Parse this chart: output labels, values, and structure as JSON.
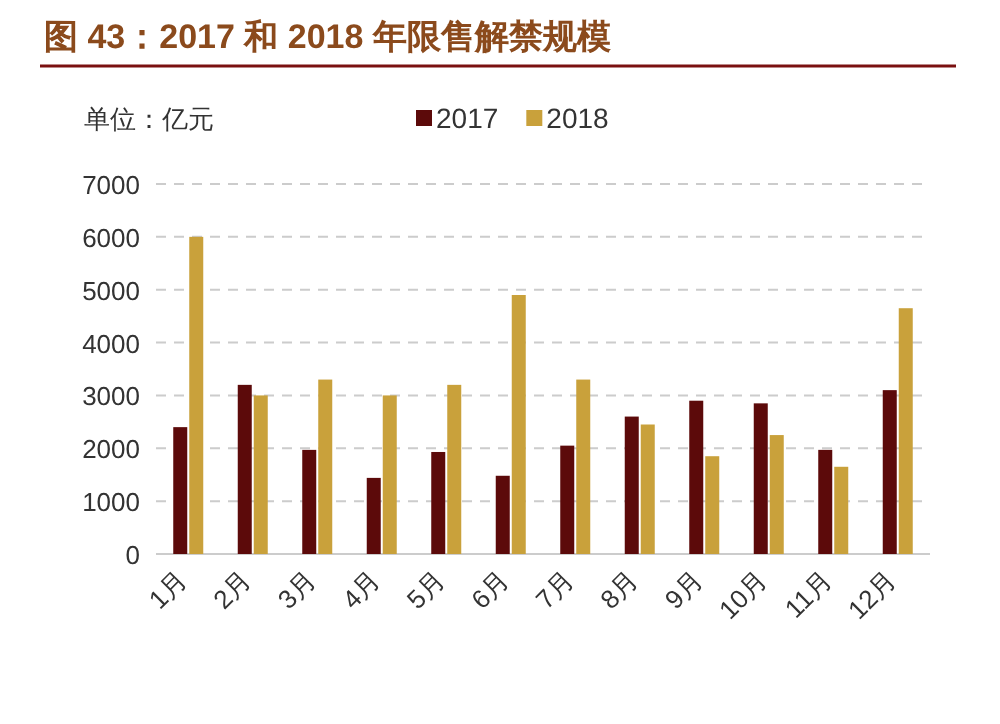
{
  "chart_data": {
    "type": "bar",
    "title": "图 43：2017 和 2018 年限售解禁规模",
    "ylabel": "单位：亿元",
    "categories": [
      "1月",
      "2月",
      "3月",
      "4月",
      "5月",
      "6月",
      "7月",
      "8月",
      "9月",
      "10月",
      "11月",
      "12月"
    ],
    "series": [
      {
        "name": "2017",
        "color": "#5c0a0a",
        "values": [
          2400,
          3200,
          1970,
          1440,
          1930,
          1480,
          2050,
          2600,
          2900,
          2850,
          1970,
          3100
        ]
      },
      {
        "name": "2018",
        "color": "#c9a13b",
        "values": [
          6000,
          3000,
          3300,
          3000,
          3200,
          4900,
          3300,
          2450,
          1850,
          2250,
          1650,
          4650
        ]
      }
    ],
    "ylim": [
      0,
      7000
    ],
    "yticks": [
      0,
      1000,
      2000,
      3000,
      4000,
      5000,
      6000,
      7000
    ],
    "grid": "y",
    "legend": "top"
  }
}
